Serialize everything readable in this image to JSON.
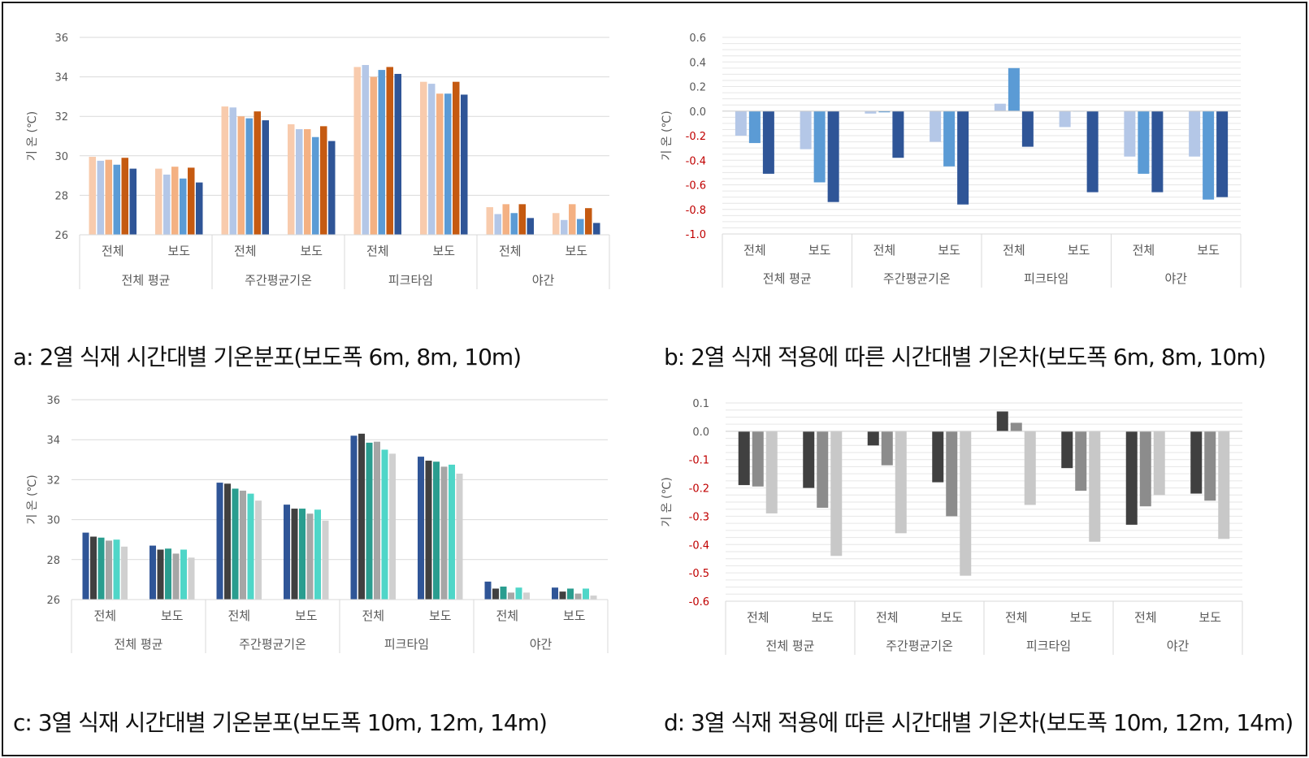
{
  "chart_data": [
    {
      "id": "a",
      "type": "bar",
      "caption": "a:  2열  식재  시간대별  기온분포(보도폭  6m,  8m,  10m)",
      "ylabel": "기 온 (℃)",
      "ylim": [
        26,
        36
      ],
      "yticks": [
        26,
        28,
        30,
        32,
        34,
        36
      ],
      "tick_labels": [
        "26",
        "28",
        "30",
        "32",
        "34",
        "36"
      ],
      "tick_colors": [
        "#595959",
        "#595959",
        "#595959",
        "#595959",
        "#595959",
        "#595959"
      ],
      "gridlines": [
        26,
        28,
        30,
        32,
        34,
        36
      ],
      "groups": [
        "전체 평균",
        "주간평균기온",
        "피크타임",
        "야간"
      ],
      "subcategories": [
        "전체",
        "보도"
      ],
      "series": [
        {
          "color": "#f8cbad",
          "values": [
            29.95,
            29.35,
            32.5,
            31.6,
            34.5,
            33.75,
            27.4,
            27.1
          ]
        },
        {
          "color": "#b4c7e7",
          "values": [
            29.75,
            29.05,
            32.45,
            31.35,
            34.6,
            33.65,
            27.05,
            26.75
          ]
        },
        {
          "color": "#f4b183",
          "values": [
            29.8,
            29.45,
            32.0,
            31.35,
            34.0,
            33.15,
            27.55,
            27.55
          ]
        },
        {
          "color": "#5b9bd5",
          "values": [
            29.55,
            28.85,
            31.9,
            30.95,
            34.35,
            33.15,
            27.1,
            26.8
          ]
        },
        {
          "color": "#c55a11",
          "values": [
            29.9,
            29.4,
            32.25,
            31.5,
            34.5,
            33.75,
            27.55,
            27.35
          ]
        },
        {
          "color": "#2f5597",
          "values": [
            29.35,
            28.65,
            31.8,
            30.75,
            34.15,
            33.1,
            26.85,
            26.6
          ]
        }
      ]
    },
    {
      "id": "b",
      "type": "bar",
      "caption": "b:  2열  식재  적용에  따른  시간대별  기온차(보도폭  6m,  8m,  10m)",
      "ylabel": "기 온 (℃)",
      "ylim": [
        -1.0,
        0.6
      ],
      "yticks": [
        -1.0,
        -0.8,
        -0.6,
        -0.4,
        -0.2,
        0.0,
        0.2,
        0.4,
        0.6
      ],
      "tick_labels": [
        "-1.0",
        "-0.8",
        "-0.6",
        "-0.4",
        "-0.2",
        "0.0",
        "0.2",
        "0.4",
        "0.6"
      ],
      "tick_colors": [
        "#c00000",
        "#c00000",
        "#c00000",
        "#c00000",
        "#c00000",
        "#595959",
        "#595959",
        "#595959",
        "#595959"
      ],
      "gridlines": [
        -1.0,
        -0.95,
        -0.9,
        -0.85,
        -0.8,
        -0.75,
        -0.7,
        -0.65,
        -0.6,
        -0.55,
        -0.5,
        -0.45,
        -0.4,
        -0.35,
        -0.3,
        -0.25,
        -0.2,
        -0.15,
        -0.1,
        -0.05,
        0.0,
        0.05,
        0.1,
        0.15,
        0.2,
        0.25,
        0.3,
        0.35,
        0.4,
        0.45,
        0.5,
        0.55,
        0.6
      ],
      "groups": [
        "전체 평균",
        "주간평균기온",
        "피크타임",
        "야간"
      ],
      "subcategories": [
        "전체",
        "보도"
      ],
      "series": [
        {
          "color": "#b4c7e7",
          "values": [
            -0.2,
            -0.31,
            -0.02,
            -0.25,
            0.06,
            -0.13,
            -0.37,
            -0.37
          ]
        },
        {
          "color": "#5b9bd5",
          "values": [
            -0.26,
            -0.58,
            -0.01,
            -0.45,
            0.35,
            0.0,
            -0.51,
            -0.72
          ]
        },
        {
          "color": "#2f5597",
          "values": [
            -0.51,
            -0.74,
            -0.38,
            -0.76,
            -0.29,
            -0.66,
            -0.66,
            -0.7
          ]
        }
      ]
    },
    {
      "id": "c",
      "type": "bar",
      "caption": "c:  3열  식재  시간대별  기온분포(보도폭  10m,  12m,  14m)",
      "ylabel": "기 온 (℃)",
      "ylim": [
        26,
        36
      ],
      "yticks": [
        26,
        28,
        30,
        32,
        34,
        36
      ],
      "tick_labels": [
        "26",
        "28",
        "30",
        "32",
        "34",
        "36"
      ],
      "tick_colors": [
        "#595959",
        "#595959",
        "#595959",
        "#595959",
        "#595959",
        "#595959"
      ],
      "gridlines": [
        26,
        28,
        30,
        32,
        34,
        36
      ],
      "groups": [
        "전체 평균",
        "주간평균기온",
        "피크타임",
        "야간"
      ],
      "subcategories": [
        "전체",
        "보도"
      ],
      "series": [
        {
          "color": "#2f5597",
          "values": [
            29.35,
            28.7,
            31.85,
            30.75,
            34.2,
            33.15,
            26.9,
            26.6
          ]
        },
        {
          "color": "#404040",
          "values": [
            29.15,
            28.5,
            31.8,
            30.55,
            34.3,
            32.95,
            26.55,
            26.4
          ]
        },
        {
          "color": "#2a9d8f",
          "values": [
            29.1,
            28.55,
            31.55,
            30.55,
            33.85,
            32.9,
            26.65,
            26.55
          ]
        },
        {
          "color": "#a6a6a6",
          "values": [
            28.95,
            28.3,
            31.45,
            30.3,
            33.9,
            32.65,
            26.35,
            26.3
          ]
        },
        {
          "color": "#4fd6c8",
          "values": [
            29.0,
            28.5,
            31.3,
            30.5,
            33.5,
            32.75,
            26.6,
            26.55
          ]
        },
        {
          "color": "#d0d0d0",
          "values": [
            28.65,
            28.1,
            30.95,
            29.95,
            33.3,
            32.3,
            26.35,
            26.2
          ]
        }
      ]
    },
    {
      "id": "d",
      "type": "bar",
      "caption": "d:  3열  식재  적용에  따른  시간대별  기온차(보도폭  10m,  12m,  14m)",
      "ylabel": "기 온 (℃)",
      "ylim": [
        -0.6,
        0.1
      ],
      "yticks": [
        -0.6,
        -0.5,
        -0.4,
        -0.3,
        -0.2,
        -0.1,
        0.0,
        0.1
      ],
      "tick_labels": [
        "-0.6",
        "-0.5",
        "-0.4",
        "-0.3",
        "-0.2",
        "-0.1",
        "0.0",
        "0.1"
      ],
      "tick_colors": [
        "#c00000",
        "#c00000",
        "#c00000",
        "#c00000",
        "#c00000",
        "#c00000",
        "#595959",
        "#595959"
      ],
      "gridlines": [
        -0.6,
        -0.575,
        -0.55,
        -0.525,
        -0.5,
        -0.475,
        -0.45,
        -0.425,
        -0.4,
        -0.375,
        -0.35,
        -0.325,
        -0.3,
        -0.275,
        -0.25,
        -0.225,
        -0.2,
        -0.175,
        -0.15,
        -0.125,
        -0.1,
        -0.075,
        -0.05,
        -0.025,
        0.0,
        0.025,
        0.05,
        0.075,
        0.1
      ],
      "groups": [
        "전체 평균",
        "주간평균기온",
        "피크타임",
        "야간"
      ],
      "subcategories": [
        "전체",
        "보도"
      ],
      "series": [
        {
          "color": "#404040",
          "values": [
            -0.19,
            -0.2,
            -0.05,
            -0.18,
            0.07,
            -0.13,
            -0.33,
            -0.22
          ]
        },
        {
          "color": "#8c8c8c",
          "values": [
            -0.195,
            -0.27,
            -0.12,
            -0.3,
            0.03,
            -0.21,
            -0.265,
            -0.245
          ]
        },
        {
          "color": "#c8c8c8",
          "values": [
            -0.29,
            -0.44,
            -0.36,
            -0.51,
            -0.26,
            -0.39,
            -0.225,
            -0.38
          ]
        }
      ]
    }
  ]
}
